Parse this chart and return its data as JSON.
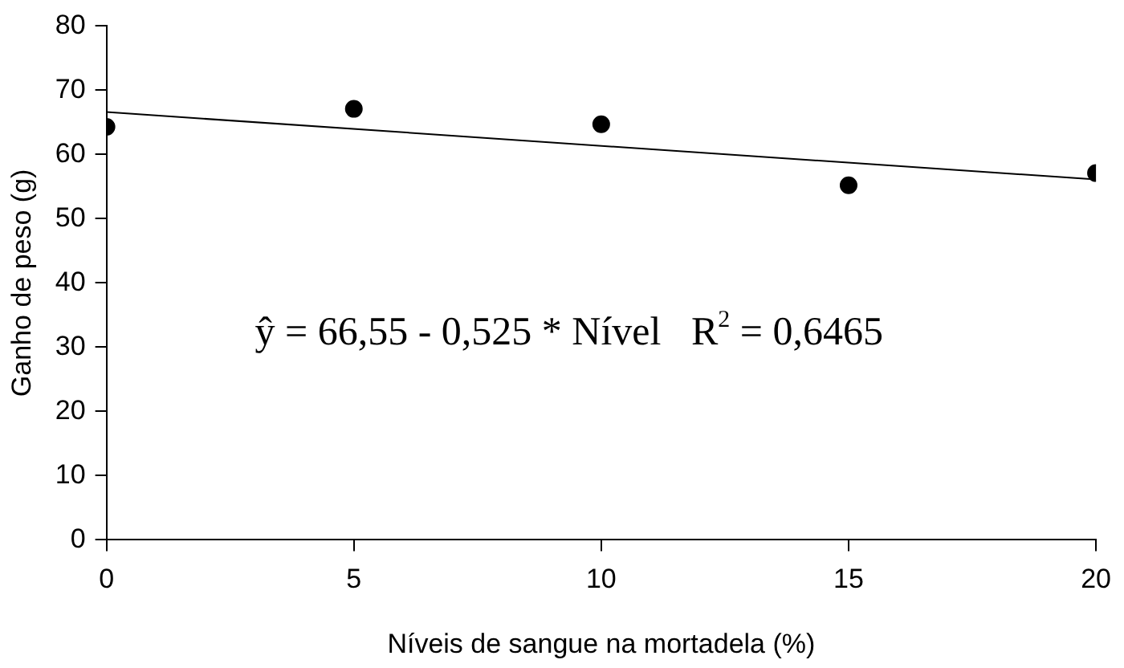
{
  "chart_data": {
    "type": "scatter",
    "xlabel": "Níveis de sangue na mortadela (%)",
    "ylabel": "Ganho de peso (g)",
    "x": [
      0,
      5,
      10,
      15,
      20
    ],
    "series": [
      {
        "color": "#000000",
        "values": [
          64.3,
          67.1,
          64.7,
          55.2,
          57.1
        ],
        "marker": "circle"
      },
      {
        "type": "line",
        "color": "#000000",
        "x": [
          0,
          20
        ],
        "values": [
          66.6,
          56.1
        ],
        "marker": "none"
      }
    ],
    "xlim": [
      0,
      20
    ],
    "xticks": [
      0,
      5,
      10,
      15,
      20
    ],
    "ylim": [
      0,
      80
    ],
    "yticks": [
      0,
      10,
      20,
      30,
      40,
      50,
      60,
      70,
      80
    ],
    "grid": false,
    "legend": false,
    "annotations": [
      "ŷ = 66,55 - 0,525 * Nível   R$^{2}$ = 0,6465"
    ]
  }
}
